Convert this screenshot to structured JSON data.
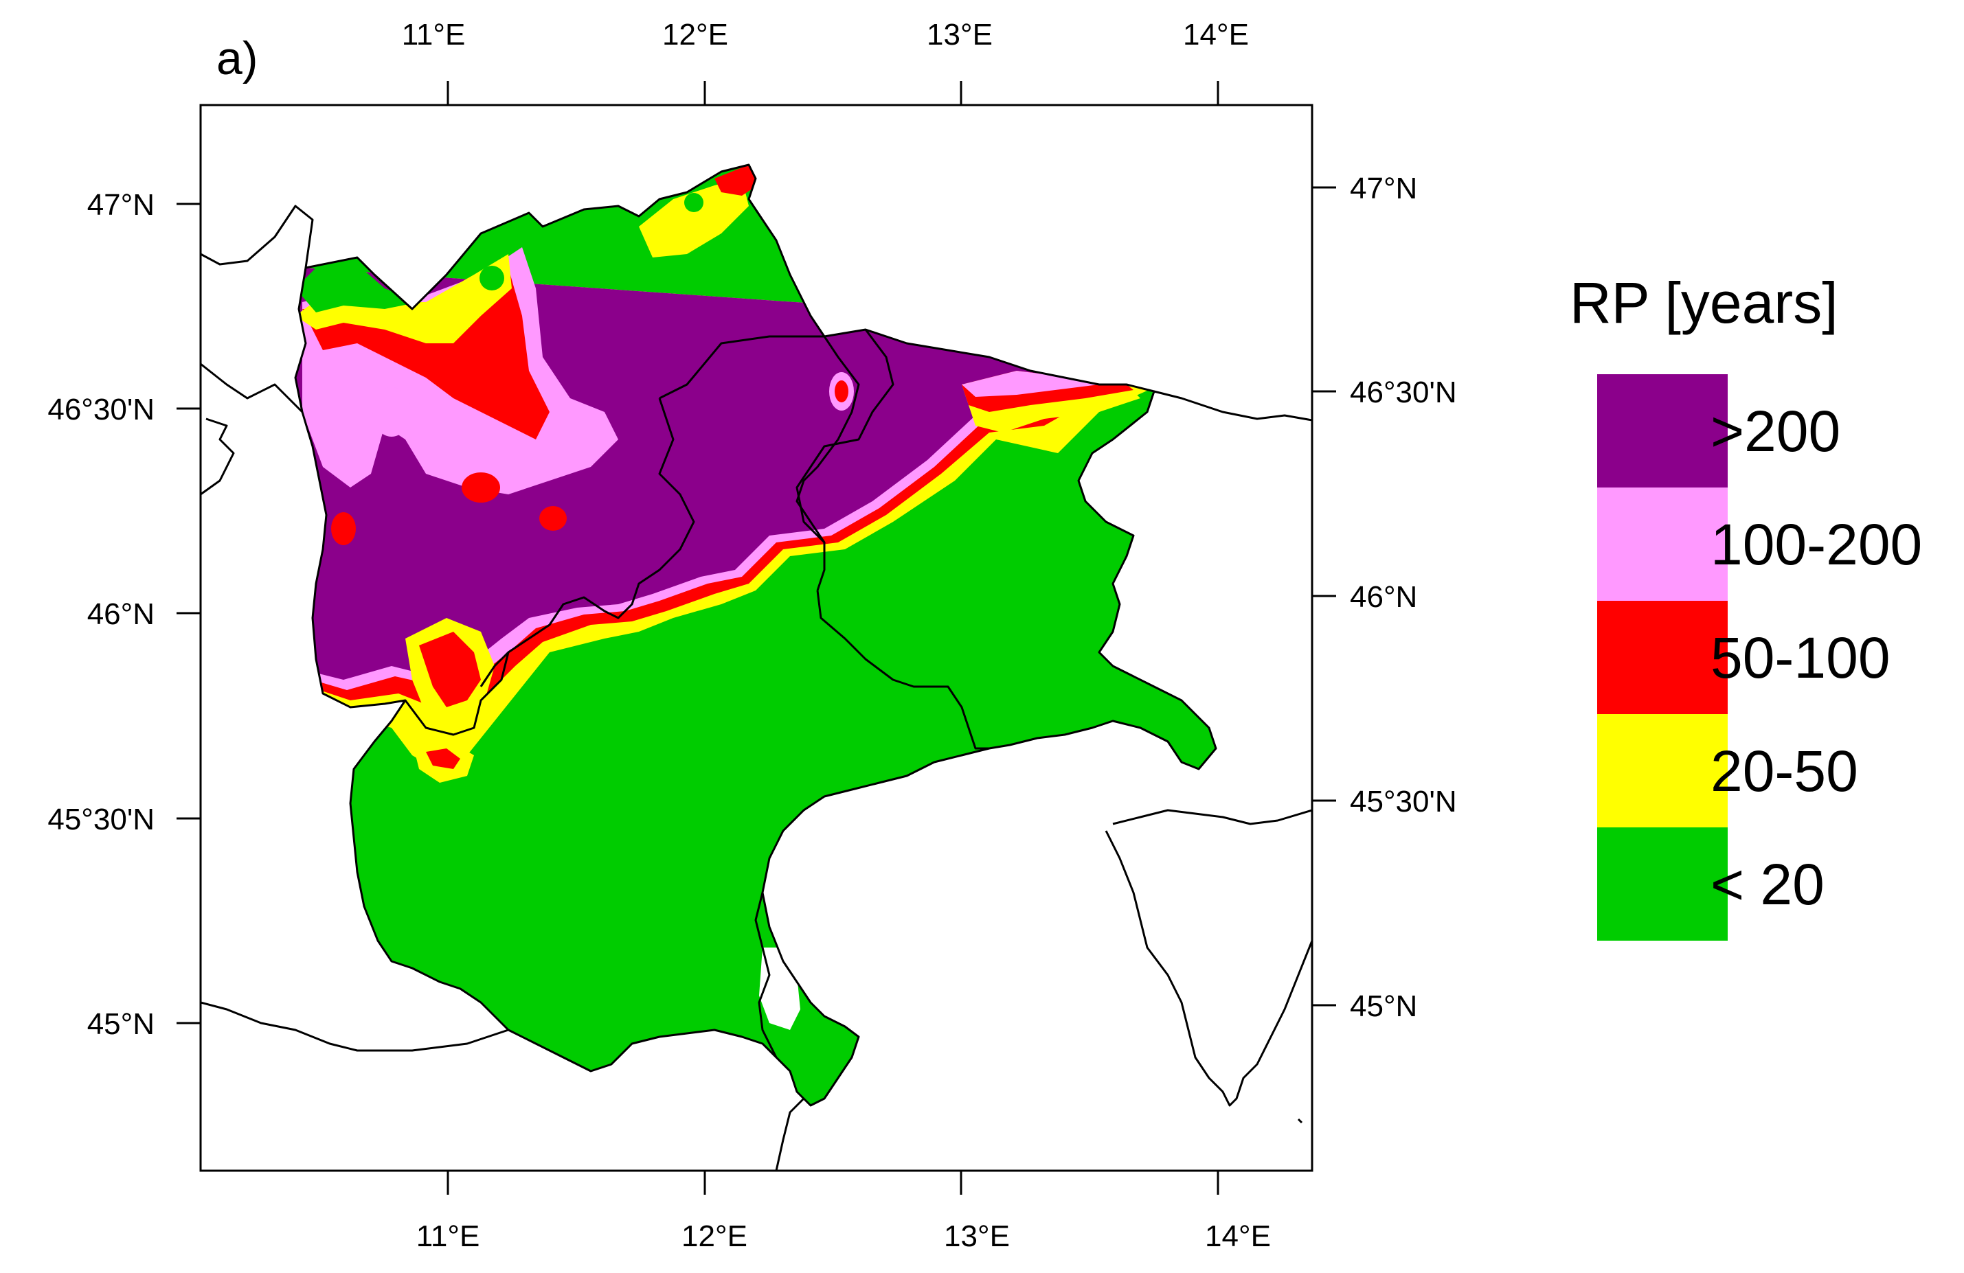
{
  "panel_label": "a)",
  "colors": {
    "gt200": "#8b008b",
    "r100_200": "#ff99ff",
    "r50_100": "#ff0000",
    "r20_50": "#ffff00",
    "lt20": "#00cc00"
  },
  "top_ticks": [
    "11°E",
    "12°E",
    "13°E",
    "14°E"
  ],
  "bottom_ticks": [
    "11°E",
    "12°E",
    "13°E",
    "14°E"
  ],
  "left_ticks": [
    "47°N",
    "46°30'N",
    "46°N",
    "45°30'N",
    "45°N"
  ],
  "right_ticks": [
    "47°N",
    "46°30'N",
    "46°N",
    "45°30'N",
    "45°N"
  ],
  "legend": {
    "title": "RP [years]",
    "items": [
      {
        "label": ">200",
        "color": "#8b008b"
      },
      {
        "label": "100-200",
        "color": "#ff99ff"
      },
      {
        "label": "50-100",
        "color": "#ff0000"
      },
      {
        "label": "20-50",
        "color": "#ffff00"
      },
      {
        "label": "< 20",
        "color": "#00cc00"
      }
    ]
  }
}
